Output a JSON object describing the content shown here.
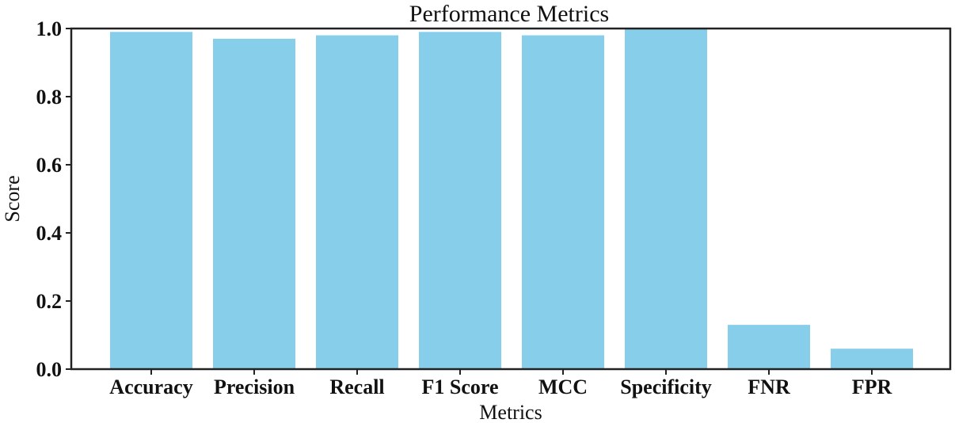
{
  "chart_data": {
    "type": "bar",
    "title": "Performance Metrics",
    "xlabel": "Metrics",
    "ylabel": "Score",
    "categories": [
      "Accuracy",
      "Precision",
      "Recall",
      "F1 Score",
      "MCC",
      "Specificity",
      "FNR",
      "FPR"
    ],
    "values": [
      0.99,
      0.97,
      0.98,
      0.99,
      0.98,
      1.0,
      0.13,
      0.06
    ],
    "ylim": [
      0,
      1.0
    ],
    "yticks": [
      "0.0",
      "0.2",
      "0.4",
      "0.6",
      "0.8",
      "1.0"
    ],
    "grid": false,
    "bar_color": "#87ceeb"
  }
}
